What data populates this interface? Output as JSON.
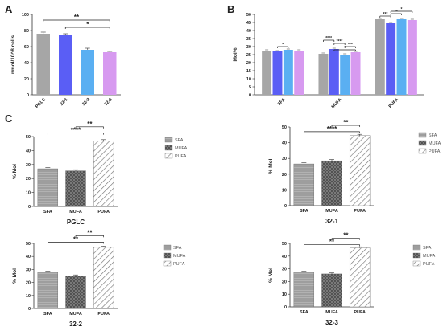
{
  "panel_letters": [
    "A",
    "B",
    "C"
  ],
  "chart_data": [
    {
      "panel": "A",
      "type": "bar",
      "categories": [
        "PGLC",
        "32-1",
        "32-2",
        "32-3"
      ],
      "values": [
        76,
        75,
        56,
        53
      ],
      "errors": [
        2,
        1,
        2,
        1
      ],
      "colors": [
        "#a6a6a6",
        "#5a5ef5",
        "#5aaff2",
        "#d79af0"
      ],
      "ylabel": "nmol/10^8 cells",
      "ylim": [
        0,
        100
      ],
      "yticks": [
        0,
        20,
        40,
        60,
        80,
        100
      ],
      "significance": [
        {
          "from": "PGLC",
          "to": "32-3",
          "label": "**",
          "y": 93
        },
        {
          "from": "32-1",
          "to": "32-3",
          "label": "*",
          "y": 84
        }
      ]
    },
    {
      "panel": "B",
      "type": "bar",
      "categories": [
        "SFA",
        "MUFA",
        "PUFA"
      ],
      "series": [
        {
          "name": "PGLC",
          "values": [
            27.5,
            25.5,
            47.0
          ],
          "color": "#a6a6a6"
        },
        {
          "name": "32-1",
          "values": [
            27.0,
            28.5,
            44.5
          ],
          "color": "#5a5ef5"
        },
        {
          "name": "32-2",
          "values": [
            28.0,
            25.0,
            47.0
          ],
          "color": "#5aaff2"
        },
        {
          "name": "32-3",
          "values": [
            27.5,
            26.5,
            46.5
          ],
          "color": "#d79af0"
        }
      ],
      "ylabel": "Mol%",
      "ylim": [
        0,
        50
      ],
      "yticks": [
        0,
        5,
        10,
        15,
        20,
        25,
        30,
        35,
        40,
        45,
        50
      ],
      "significance": [
        {
          "group": "SFA",
          "from": 1,
          "to": 2,
          "label": "*",
          "y": 30
        },
        {
          "group": "MUFA",
          "from": 0,
          "to": 1,
          "label": "****",
          "y": 34
        },
        {
          "group": "MUFA",
          "from": 1,
          "to": 2,
          "label": "****",
          "y": 32
        },
        {
          "group": "MUFA",
          "from": 2,
          "to": 3,
          "label": "***",
          "y": 30
        },
        {
          "group": "MUFA",
          "from": 1,
          "to": 3,
          "label": "*",
          "y": 28
        },
        {
          "group": "PUFA",
          "from": 0,
          "to": 1,
          "label": "***",
          "y": 49
        },
        {
          "group": "PUFA",
          "from": 1,
          "to": 2,
          "label": "**",
          "y": 50.5
        },
        {
          "group": "PUFA",
          "from": 1,
          "to": 3,
          "label": "*",
          "y": 52
        }
      ]
    },
    {
      "panel": "C",
      "subtitle": "PGLC",
      "type": "bar",
      "categories": [
        "SFA",
        "MUFA",
        "PUFA"
      ],
      "values": [
        27.0,
        25.5,
        47.0
      ],
      "ylabel": "% Mol",
      "ylim": [
        0,
        50
      ],
      "yticks": [
        0,
        10,
        20,
        30,
        40,
        50
      ],
      "legend": [
        "SFA",
        "MUFA",
        "PUFA"
      ],
      "significance": [
        {
          "from": "SFA",
          "to": "PUFA",
          "label": "****",
          "y": 52.5
        },
        {
          "from": "MUFA",
          "to": "PUFA",
          "label": "**",
          "y": 57
        }
      ]
    },
    {
      "panel": "C",
      "subtitle": "32-1",
      "type": "bar",
      "categories": [
        "SFA",
        "MUFA",
        "PUFA"
      ],
      "values": [
        26.5,
        28.5,
        44.5
      ],
      "ylabel": "% Mol",
      "ylim": [
        0,
        50
      ],
      "yticks": [
        0,
        10,
        20,
        30,
        40,
        50
      ],
      "legend": [
        "SFA",
        "MUFA",
        "PUFA"
      ],
      "significance": [
        {
          "from": "SFA",
          "to": "PUFA",
          "label": "****",
          "y": 47
        },
        {
          "from": "MUFA",
          "to": "PUFA",
          "label": "**",
          "y": 51
        }
      ]
    },
    {
      "panel": "C",
      "subtitle": "32-2",
      "type": "bar",
      "categories": [
        "SFA",
        "MUFA",
        "PUFA"
      ],
      "values": [
        28.0,
        25.0,
        47.0
      ],
      "ylabel": "% Mol",
      "ylim": [
        0,
        50
      ],
      "yticks": [
        0,
        10,
        20,
        30,
        40,
        50
      ],
      "legend": [
        "SFA",
        "MUFA",
        "PUFA"
      ],
      "significance": [
        {
          "from": "SFA",
          "to": "PUFA",
          "label": "**",
          "y": 51
        },
        {
          "from": "MUFA",
          "to": "PUFA",
          "label": "**",
          "y": 56
        }
      ]
    },
    {
      "panel": "C",
      "subtitle": "32-3",
      "type": "bar",
      "categories": [
        "SFA",
        "MUFA",
        "PUFA"
      ],
      "values": [
        27.5,
        26.0,
        46.5
      ],
      "ylabel": "% Mol",
      "ylim": [
        0,
        50
      ],
      "yticks": [
        0,
        10,
        20,
        30,
        40,
        50
      ],
      "legend": [
        "SFA",
        "MUFA",
        "PUFA"
      ],
      "significance": [
        {
          "from": "SFA",
          "to": "PUFA",
          "label": "**",
          "y": 49
        },
        {
          "from": "MUFA",
          "to": "PUFA",
          "label": "**",
          "y": 54
        }
      ]
    }
  ]
}
